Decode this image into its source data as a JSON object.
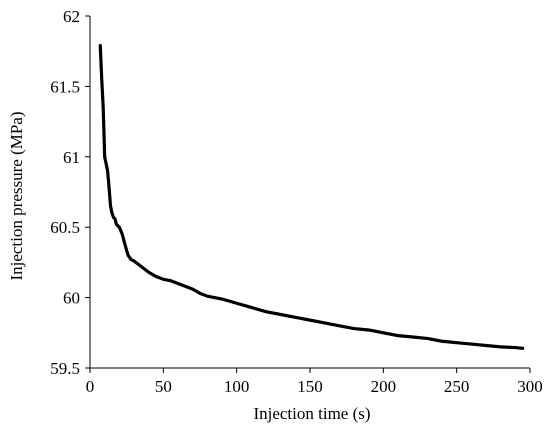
{
  "chart_data": {
    "type": "line",
    "title": "",
    "xlabel": "Injection time (s)",
    "ylabel": "Injection pressure (MPa)",
    "xlim": [
      0,
      300
    ],
    "ylim": [
      59.5,
      62
    ],
    "xticks": [
      0,
      50,
      100,
      150,
      200,
      250,
      300
    ],
    "xtick_labels": [
      "0",
      "50",
      "100",
      "150",
      "200",
      "250",
      "300"
    ],
    "yticks": [
      59.5,
      60,
      60.5,
      61,
      61.5,
      62
    ],
    "ytick_labels": [
      "59.5",
      "60",
      "60.5",
      "61",
      "61.5",
      "62"
    ],
    "grid": false,
    "legend": "none",
    "series": [
      {
        "color": "#000000",
        "x": [
          7,
          8,
          9,
          10,
          11,
          12,
          13,
          14,
          15,
          16,
          17,
          18,
          20,
          22,
          24,
          26,
          28,
          30,
          35,
          40,
          45,
          50,
          55,
          60,
          65,
          70,
          75,
          80,
          90,
          100,
          110,
          120,
          130,
          140,
          150,
          160,
          170,
          180,
          190,
          200,
          210,
          220,
          230,
          240,
          250,
          260,
          270,
          280,
          290,
          295
        ],
        "y": [
          61.79,
          61.55,
          61.35,
          61.0,
          60.95,
          60.9,
          60.78,
          60.65,
          60.6,
          60.57,
          60.56,
          60.52,
          60.5,
          60.45,
          60.37,
          60.3,
          60.27,
          60.26,
          60.22,
          60.18,
          60.15,
          60.13,
          60.12,
          60.1,
          60.08,
          60.06,
          60.03,
          60.01,
          59.99,
          59.96,
          59.93,
          59.9,
          59.88,
          59.86,
          59.84,
          59.82,
          59.8,
          59.78,
          59.77,
          59.75,
          59.73,
          59.72,
          59.71,
          59.69,
          59.68,
          59.67,
          59.66,
          59.65,
          59.645,
          59.64
        ]
      }
    ]
  },
  "colors": {
    "axis": "#000000",
    "background": "#ffffff"
  }
}
